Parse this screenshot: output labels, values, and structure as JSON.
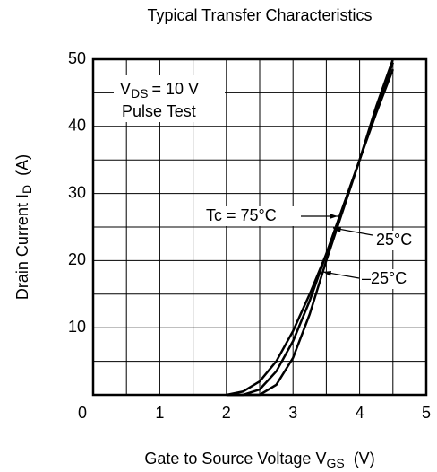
{
  "chart_data": {
    "type": "line",
    "title": "Typical Transfer Characteristics",
    "x_label": {
      "main": "Gate to Source Voltage  V",
      "sub": "GS",
      "unit": "  (V)"
    },
    "y_label": {
      "main": "Drain Current  I",
      "sub": "D",
      "unit": "  (A)"
    },
    "x": [
      2.0,
      2.25,
      2.5,
      2.75,
      3.0,
      3.25,
      3.5,
      3.75,
      4.0,
      4.25,
      4.5
    ],
    "series": [
      {
        "name": "Tc = 75°C",
        "color": "#000000",
        "values": [
          0,
          0.5,
          2,
          5,
          9.5,
          15,
          21,
          28,
          35,
          42,
          48.5
        ]
      },
      {
        "name": "25°C",
        "color": "#000000",
        "values": [
          0,
          0,
          0.8,
          3.5,
          8,
          14,
          21,
          28,
          35,
          42.5,
          49.5
        ]
      },
      {
        "name": "–25°C",
        "color": "#000000",
        "values": [
          0,
          0,
          0,
          1.5,
          5.5,
          12,
          20,
          27.5,
          35,
          43,
          50
        ]
      }
    ],
    "annotation": {
      "v": "V",
      "sub": "DS",
      "rest": "= 10 V",
      "line2": "Pulse Test"
    },
    "xlim": [
      0,
      5
    ],
    "xticks": [
      0,
      1,
      2,
      3,
      4,
      5
    ],
    "ylim": [
      0,
      50
    ],
    "yticks": [
      0,
      10,
      20,
      30,
      40,
      50
    ],
    "grid": true
  }
}
